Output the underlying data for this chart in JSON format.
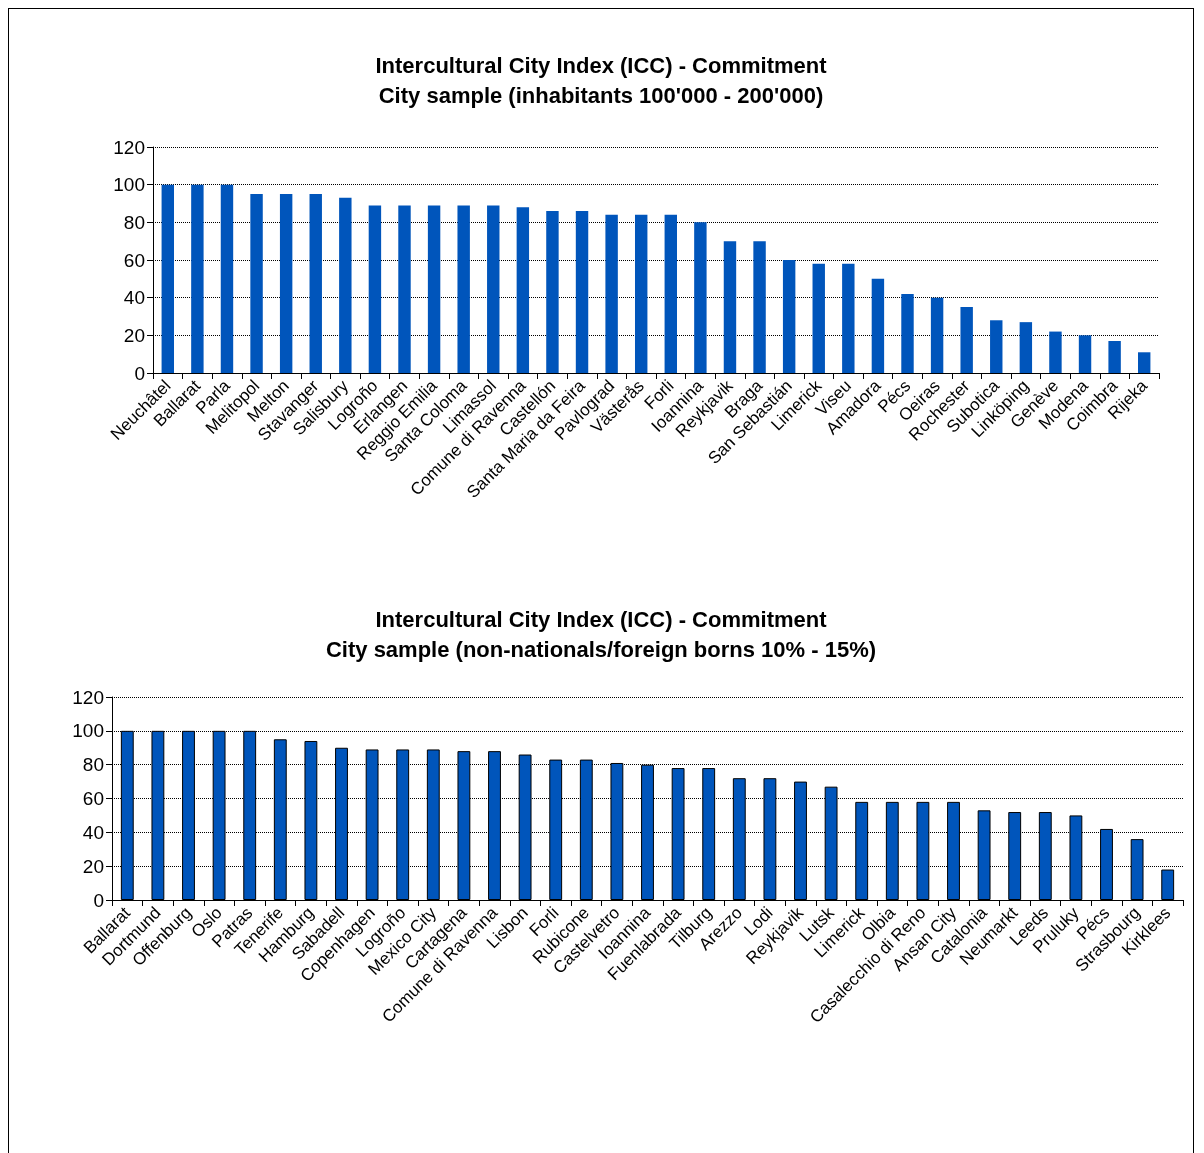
{
  "chart_data": [
    {
      "type": "bar",
      "title": "Intercultural City Index (ICC) - Commitment\nCity sample (inhabitants 100'000 - 200'000)",
      "categories": [
        "Neuchâtel",
        "Ballarat",
        "Parla",
        "Melitopol",
        "Melton",
        "Stavanger",
        "Salisbury",
        "Logroño",
        "Erlangen",
        "Reggio Emilia",
        "Santa Coloma",
        "Limassol",
        "Comune di Ravenna",
        "Castellón",
        "Santa Maria da Feira",
        "Pavlograd",
        "Västerås",
        "Forli",
        "Ioannina",
        "Reykjavik",
        "Braga",
        "San Sebastián",
        "Limerick",
        "Viseu",
        "Amadora",
        "Pécs",
        "Oeiras",
        "Rochester",
        "Subotica",
        "Linköping",
        "Genève",
        "Modena",
        "Coimbra",
        "Rijeka"
      ],
      "values": [
        100,
        100,
        100,
        95,
        95,
        95,
        93,
        89,
        89,
        89,
        89,
        89,
        88,
        86,
        86,
        84,
        84,
        84,
        80,
        70,
        70,
        60,
        58,
        58,
        50,
        42,
        40,
        35,
        28,
        27,
        22,
        20,
        17,
        11
      ],
      "color": "#0055bb",
      "ylim": [
        0,
        120
      ],
      "yticks": [
        0,
        20,
        40,
        60,
        80,
        100,
        120
      ],
      "grid": "y"
    },
    {
      "type": "bar",
      "title": "Intercultural City Index (ICC) - Commitment\nCity sample (non-nationals/foreign borns 10% - 15%)",
      "categories": [
        "Ballarat",
        "Dortmund",
        "Offenburg",
        "Oslo",
        "Patras",
        "Tenerife",
        "Hamburg",
        "Sabadell",
        "Copenhagen",
        "Logroño",
        "Mexico City",
        "Cartagena",
        "Comune di Ravenna",
        "Lisbon",
        "Forli",
        "Rubicone",
        "Castelvetro",
        "Ioannina",
        "Fuenlabrada",
        "Tilburg",
        "Arezzo",
        "Lodi",
        "Reykjavik",
        "Lutsk",
        "Limerick",
        "Olbia",
        "Casalecchio di Reno",
        "Ansan City",
        "Catalonia",
        "Neumarkt",
        "Leeds",
        "Pruluky",
        "Pécs",
        "Strasbourg",
        "Kirklees"
      ],
      "values": [
        100,
        100,
        100,
        100,
        100,
        95,
        94,
        90,
        89,
        89,
        89,
        88,
        88,
        86,
        83,
        83,
        81,
        80,
        78,
        78,
        72,
        72,
        70,
        67,
        58,
        58,
        58,
        58,
        53,
        52,
        52,
        50,
        42,
        36,
        18
      ],
      "color": "#0055bb",
      "ylim": [
        0,
        120
      ],
      "yticks": [
        0,
        20,
        40,
        60,
        80,
        100,
        120
      ],
      "grid": "y"
    }
  ]
}
